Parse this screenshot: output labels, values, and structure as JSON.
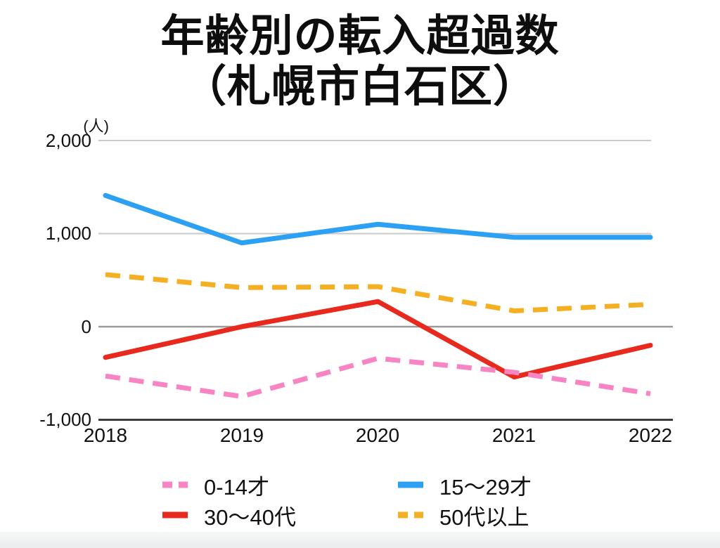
{
  "title": {
    "line1": "年齢別の転入超過数",
    "line2": "（札幌市白石区）"
  },
  "axes": {
    "unit_label": "(人)",
    "y_ticks": [
      "2,000",
      "1,000",
      "0",
      "-1,000"
    ],
    "x_ticks": [
      "2018",
      "2019",
      "2020",
      "2021",
      "2022"
    ]
  },
  "legend": {
    "items": [
      {
        "label": "0-14才",
        "color": "#F884C4",
        "style": "dashed"
      },
      {
        "label": "15〜29才",
        "color": "#2CA0F2",
        "style": "solid"
      },
      {
        "label": "30〜40代",
        "color": "#E8291E",
        "style": "solid"
      },
      {
        "label": "50代以上",
        "color": "#F5AF23",
        "style": "dashed"
      }
    ]
  },
  "colors": {
    "grid_light": "#C9C9C9",
    "grid_zero": "#9A9A9A",
    "axis_dark": "#3C3C3C",
    "pink": "#F884C4",
    "blue": "#2CA0F2",
    "red": "#E8291E",
    "yellow": "#F5AF23"
  },
  "chart_data": {
    "type": "line",
    "title": "年齢別の転入超過数（札幌市白石区）",
    "ylabel": "(人)",
    "categories": [
      "2018",
      "2019",
      "2020",
      "2021",
      "2022"
    ],
    "series": [
      {
        "name": "0-14才",
        "values": [
          -530,
          -750,
          -340,
          -490,
          -720
        ],
        "color": "#F884C4",
        "style": "dashed"
      },
      {
        "name": "15〜29才",
        "values": [
          1410,
          900,
          1100,
          960,
          960
        ],
        "color": "#2CA0F2",
        "style": "solid"
      },
      {
        "name": "30〜40代",
        "values": [
          -330,
          0,
          270,
          -540,
          -200
        ],
        "color": "#E8291E",
        "style": "solid"
      },
      {
        "name": "50代以上",
        "values": [
          560,
          420,
          430,
          170,
          240
        ],
        "color": "#F5AF23",
        "style": "dashed"
      }
    ],
    "ylim": [
      -1000,
      2000
    ],
    "y_gridlines": [
      2000,
      1000,
      0,
      -1000
    ],
    "grid": true,
    "legend_position": "bottom"
  }
}
